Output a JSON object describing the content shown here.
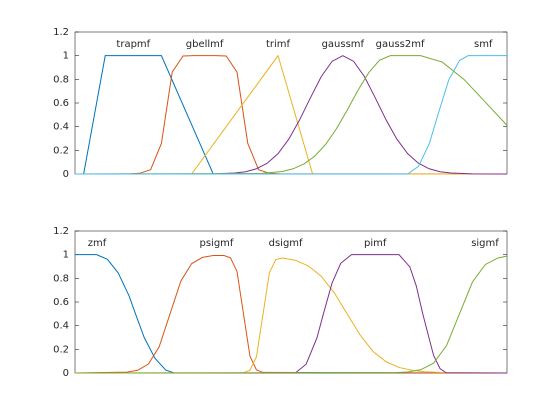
{
  "chart_data": [
    {
      "type": "line",
      "xlim": [
        0,
        10
      ],
      "ylim": [
        0,
        1.2
      ],
      "yticks": [
        0,
        0.2,
        0.4,
        0.6,
        0.8,
        1,
        1.2
      ],
      "series": [
        {
          "name": "trapmf",
          "color": "#0072bd",
          "x": [
            0,
            0.2,
            0.7,
            2,
            3.2,
            10
          ],
          "values": [
            0,
            0,
            1,
            1,
            0,
            0
          ]
        },
        {
          "name": "gbellmf",
          "color": "#d95319",
          "x": [
            0,
            1.25,
            1.5,
            1.75,
            2,
            2.25,
            2.5,
            2.75,
            3,
            3.25,
            3.5,
            3.75,
            4,
            4.25,
            4.5,
            4.75,
            10
          ],
          "values": [
            0,
            0.001,
            0.006,
            0.036,
            0.258,
            0.861,
            0.997,
            1,
            1,
            1,
            0.997,
            0.861,
            0.258,
            0.036,
            0.006,
            0.001,
            0
          ]
        },
        {
          "name": "trimf",
          "color": "#edb120",
          "x": [
            0,
            2.7,
            4.7,
            5.5,
            10
          ],
          "values": [
            0,
            0,
            1,
            0,
            0
          ]
        },
        {
          "name": "gaussmf",
          "color": "#7e2f8e",
          "x": [
            0,
            3.2,
            3.7,
            3.95,
            4.2,
            4.45,
            4.7,
            4.95,
            5.2,
            5.45,
            5.7,
            5.95,
            6.2,
            6.45,
            6.7,
            6.95,
            7.2,
            7.45,
            7.7,
            7.95,
            8.2,
            8.45,
            8.7,
            9.2,
            10
          ],
          "values": [
            0,
            0.001,
            0.008,
            0.019,
            0.044,
            0.091,
            0.172,
            0.295,
            0.458,
            0.644,
            0.823,
            0.952,
            1,
            0.952,
            0.823,
            0.644,
            0.458,
            0.295,
            0.172,
            0.091,
            0.044,
            0.019,
            0.008,
            0.001,
            0
          ]
        },
        {
          "name": "gauss2mf",
          "color": "#77ac30",
          "x": [
            0,
            4.3,
            4.8,
            5.05,
            5.3,
            5.55,
            5.8,
            6.05,
            6.3,
            6.55,
            6.8,
            7.05,
            7.3,
            8,
            8.5,
            9,
            9.5,
            10
          ],
          "values": [
            0,
            0.004,
            0.021,
            0.044,
            0.085,
            0.151,
            0.249,
            0.381,
            0.539,
            0.707,
            0.857,
            0.962,
            1,
            1,
            0.946,
            0.801,
            0.607,
            0.411
          ]
        },
        {
          "name": "smf",
          "color": "#4dbeee",
          "x": [
            0,
            7.7,
            7.95,
            8.2,
            8.4,
            8.65,
            8.9,
            9.1,
            10
          ],
          "values": [
            0,
            0,
            0.064,
            0.255,
            0.5,
            0.793,
            0.959,
            1,
            1
          ]
        }
      ]
    },
    {
      "type": "line",
      "xlim": [
        0,
        10
      ],
      "ylim": [
        0,
        1.2
      ],
      "yticks": [
        0,
        0.2,
        0.4,
        0.6,
        0.8,
        1,
        1.2
      ],
      "series": [
        {
          "name": "zmf",
          "color": "#0072bd",
          "x": [
            0,
            0.5,
            0.75,
            1,
            1.25,
            1.4,
            1.6,
            1.85,
            2.1,
            2.3,
            10
          ],
          "values": [
            1,
            1,
            0.961,
            0.846,
            0.653,
            0.5,
            0.302,
            0.125,
            0.025,
            0,
            0
          ]
        },
        {
          "name": "psigmf",
          "color": "#d95319",
          "x": [
            0,
            1.2,
            1.45,
            1.7,
            1.95,
            2.2,
            2.45,
            2.7,
            2.95,
            3.2,
            3.45,
            3.6,
            3.75,
            3.9,
            4.05,
            4.2,
            4.35,
            10
          ],
          "values": [
            0,
            0.007,
            0.023,
            0.076,
            0.223,
            0.5,
            0.777,
            0.924,
            0.977,
            0.993,
            0.993,
            0.973,
            0.858,
            0.5,
            0.142,
            0.027,
            0.005,
            0
          ]
        },
        {
          "name": "dsigmf",
          "color": "#edb120",
          "x": [
            0,
            3.9,
            4.05,
            4.2,
            4.35,
            4.5,
            4.65,
            4.8,
            5.1,
            5.4,
            5.7,
            6,
            6.3,
            6.6,
            6.9,
            7.2,
            7.5,
            7.8,
            8.1,
            8.5,
            10
          ],
          "values": [
            0,
            0.002,
            0.023,
            0.137,
            0.492,
            0.848,
            0.959,
            0.972,
            0.953,
            0.905,
            0.818,
            0.679,
            0.5,
            0.321,
            0.182,
            0.095,
            0.047,
            0.023,
            0.011,
            0.004,
            0
          ]
        },
        {
          "name": "pimf",
          "color": "#7e2f8e",
          "x": [
            0,
            5.1,
            5.35,
            5.6,
            5.75,
            5.95,
            6.15,
            6.4,
            7.5,
            7.75,
            7.9,
            8.05,
            8.3,
            8.45,
            8.6,
            10
          ],
          "values": [
            0,
            0,
            0.074,
            0.296,
            0.5,
            0.76,
            0.926,
            1,
            1,
            0.897,
            0.736,
            0.5,
            0.149,
            0.037,
            0,
            0
          ]
        },
        {
          "name": "sigmf",
          "color": "#77ac30",
          "x": [
            0,
            7.4,
            7.7,
            8,
            8.3,
            8.6,
            8.9,
            9.2,
            9.5,
            9.8,
            10
          ],
          "values": [
            0,
            0.003,
            0.008,
            0.027,
            0.083,
            0.231,
            0.5,
            0.769,
            0.917,
            0.973,
            0.988
          ]
        }
      ]
    }
  ]
}
